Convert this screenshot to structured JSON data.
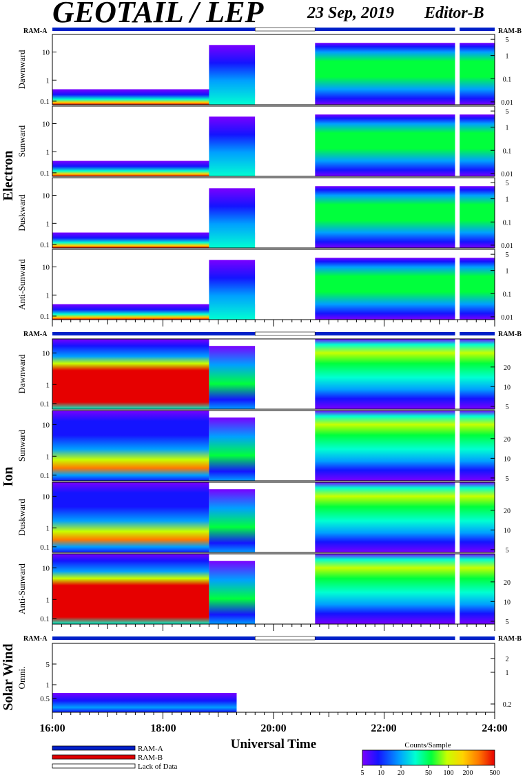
{
  "header": {
    "instrument": "GEOTAIL / LEP",
    "date": "23 Sep, 2019",
    "editor": "Editor-B"
  },
  "groups": {
    "electron": "Electron",
    "ion": "Ion",
    "solar_wind": "Solar Wind"
  },
  "ram_labels": {
    "a": "RAM-A",
    "b": "RAM-B"
  },
  "xaxis": {
    "label": "Universal Time",
    "ticks": [
      "16:00",
      "18:00",
      "20:00",
      "22:00",
      "24:00"
    ]
  },
  "legend": {
    "ram_a": "RAM-A",
    "ram_b": "RAM-B",
    "lack": "Lack of Data"
  },
  "colorbar": {
    "title": "Counts/Sample",
    "ticks": [
      "5",
      "10",
      "20",
      "50",
      "100",
      "200",
      "500"
    ]
  },
  "colors": {
    "ram_a": "#0020c8",
    "ram_b": "#e00000",
    "colormap": [
      "#7a00ff",
      "#1414ff",
      "#00a0ff",
      "#00ffd2",
      "#00ff3c",
      "#c8ff00",
      "#ffd200",
      "#ff7800",
      "#e60000"
    ]
  },
  "chart_data": {
    "type": "heatmap",
    "title": "GEOTAIL / LEP",
    "xlabel": "Universal Time",
    "xlim": [
      "16:00",
      "24:00"
    ],
    "data_gap": [
      "19:40",
      "20:45"
    ],
    "small_gap": [
      "23:17",
      "23:22"
    ],
    "colorbar_range": [
      5,
      500
    ],
    "panels": [
      {
        "group": "Electron",
        "name": "Dawnward",
        "left_ticks": [
          "10",
          "1",
          "0.1"
        ],
        "right_ticks": [
          "5",
          "1",
          "0.1",
          "0.01"
        ]
      },
      {
        "group": "Electron",
        "name": "Sunward",
        "left_ticks": [
          "10",
          "1",
          "0.1"
        ],
        "right_ticks": [
          "5",
          "1",
          "0.1",
          "0.01"
        ]
      },
      {
        "group": "Electron",
        "name": "Duskward",
        "left_ticks": [
          "10",
          "1",
          "0.1"
        ],
        "right_ticks": [
          "5",
          "1",
          "0.1",
          "0.01"
        ]
      },
      {
        "group": "Electron",
        "name": "Anti-Sunward",
        "left_ticks": [
          "10",
          "1",
          "0.1"
        ],
        "right_ticks": [
          "5",
          "1",
          "0.1",
          "0.01"
        ]
      },
      {
        "group": "Ion",
        "name": "Dawnward",
        "left_ticks": [
          "10",
          "1",
          "0.1"
        ],
        "right_ticks": [
          "20",
          "10",
          "5"
        ]
      },
      {
        "group": "Ion",
        "name": "Sunward",
        "left_ticks": [
          "10",
          "1",
          "0.1"
        ],
        "right_ticks": [
          "20",
          "10",
          "5"
        ]
      },
      {
        "group": "Ion",
        "name": "Duskward",
        "left_ticks": [
          "10",
          "1",
          "0.1"
        ],
        "right_ticks": [
          "20",
          "10",
          "5"
        ]
      },
      {
        "group": "Ion",
        "name": "Anti-Sunward",
        "left_ticks": [
          "10",
          "1",
          "0.1"
        ],
        "right_ticks": [
          "20",
          "10",
          "5"
        ]
      },
      {
        "group": "Solar Wind",
        "name": "Omni.",
        "left_ticks": [
          "5",
          "1",
          "0.5"
        ],
        "right_ticks": [
          "2",
          "1",
          "0.2"
        ]
      }
    ]
  }
}
